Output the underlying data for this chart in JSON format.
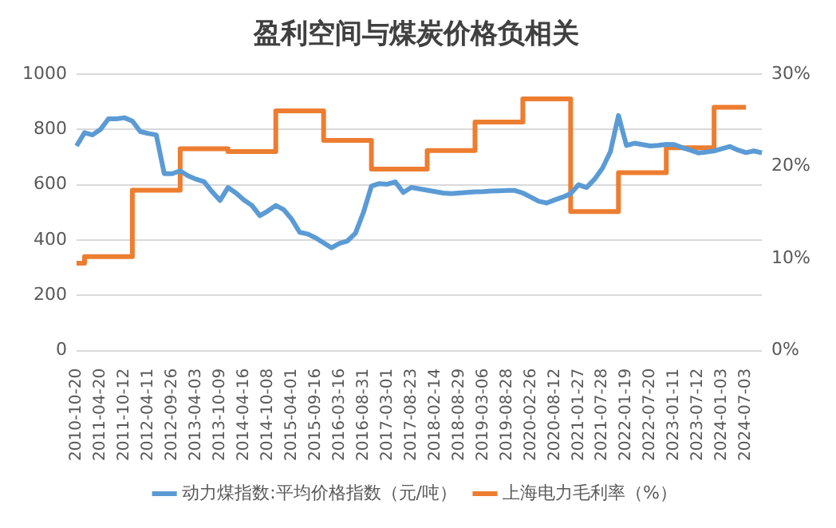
{
  "chart_data": {
    "type": "line",
    "title": "盈利空间与煤炭价格负相关",
    "categories": [
      "2010-10-20",
      null,
      null,
      "2011-04-20",
      null,
      null,
      "2011-10-12",
      null,
      null,
      "2012-04-11",
      null,
      null,
      "2012-09-26",
      null,
      null,
      "2013-04-03",
      null,
      null,
      "2013-10-09",
      null,
      null,
      "2014-04-16",
      null,
      null,
      "2014-10-08",
      null,
      null,
      "2015-04-01",
      null,
      null,
      "2015-09-16",
      null,
      null,
      "2016-03-16",
      null,
      null,
      "2016-08-31",
      null,
      null,
      "2017-03-01",
      null,
      null,
      "2017-08-23",
      null,
      null,
      "2018-02-14",
      null,
      null,
      "2018-08-29",
      null,
      null,
      "2019-03-06",
      null,
      null,
      "2019-08-28",
      null,
      null,
      "2020-02-26",
      null,
      null,
      "2020-08-12",
      null,
      null,
      "2021-01-27",
      null,
      null,
      "2021-07-28",
      null,
      null,
      "2022-01-19",
      null,
      null,
      "2022-07-20",
      null,
      null,
      "2023-01-11",
      null,
      null,
      "2023-07-12",
      null,
      null,
      "2024-01-03",
      null,
      null,
      "2024-07-03",
      null,
      null
    ],
    "series": [
      {
        "name": "动力煤指数:平均价格指数（元/吨）",
        "color": "#5b9bd5",
        "values": [
          740,
          788,
          780,
          800,
          838,
          838,
          842,
          830,
          792,
          785,
          780,
          640,
          640,
          650,
          632,
          620,
          611,
          575,
          543,
          590,
          570,
          545,
          525,
          488,
          505,
          525,
          510,
          475,
          428,
          422,
          408,
          390,
          372,
          388,
          397,
          425,
          500,
          595,
          604,
          602,
          610,
          572,
          590,
          585,
          580,
          575,
          570,
          568,
          570,
          572,
          574,
          575,
          577,
          578,
          579,
          579,
          570,
          555,
          540,
          534,
          545,
          555,
          568,
          600,
          590,
          620,
          660,
          720,
          850,
          742,
          750,
          745,
          740,
          742,
          746,
          745,
          734,
          725,
          715,
          718,
          722,
          730,
          738,
          725,
          716,
          722,
          715
        ]
      },
      {
        "name": "上海电力毛利率（%）",
        "color": "#ed7d31",
        "type": "step",
        "axis": "y2",
        "values": [
          9.5,
          9.5,
          10.2,
          10.2,
          10.2,
          10.2,
          10.2,
          10.2,
          17.4,
          17.4,
          17.4,
          17.4,
          17.4,
          17.4,
          21.9,
          21.9,
          21.9,
          21.9,
          21.9,
          21.9,
          21.6,
          21.6,
          21.6,
          21.6,
          21.6,
          21.6,
          26,
          26,
          26,
          26,
          26,
          26,
          22.8,
          22.8,
          22.8,
          22.8,
          22.8,
          22.8,
          19.7,
          19.7,
          19.7,
          19.7,
          19.7,
          19.7,
          19.7,
          21.7,
          21.7,
          21.7,
          21.7,
          21.7,
          21.7,
          24.8,
          24.8,
          24.8,
          24.8,
          24.8,
          24.8,
          27.3,
          27.3,
          27.3,
          27.3,
          27.3,
          27.3,
          15.1,
          15.1,
          15.1,
          15.1,
          15.1,
          15.1,
          19.3,
          19.3,
          19.3,
          19.3,
          19.3,
          19.3,
          22,
          22,
          22,
          22,
          22,
          22,
          26.4,
          26.4,
          26.4,
          26.4,
          null,
          null
        ]
      }
    ],
    "ylim": [
      0,
      1000
    ],
    "yticks": [
      0,
      200,
      400,
      600,
      800,
      1000
    ],
    "y2lim": [
      0,
      30
    ],
    "y2ticks": [
      {
        "value": 0,
        "label": "0%"
      },
      {
        "value": 10,
        "label": "10%"
      },
      {
        "value": 20,
        "label": "20%"
      },
      {
        "value": 30,
        "label": "30%"
      }
    ],
    "grid": "y",
    "legend": "bottom"
  }
}
